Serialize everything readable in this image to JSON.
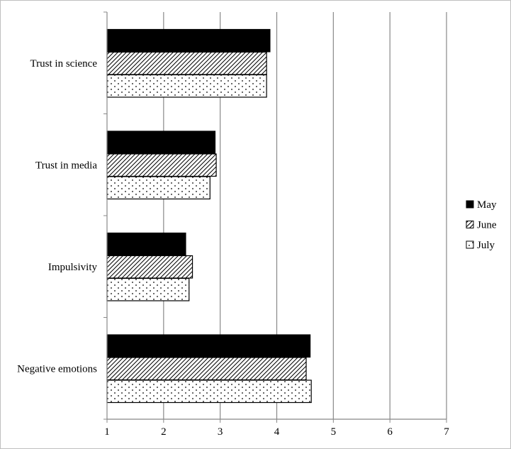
{
  "chart_data": {
    "type": "bar",
    "orientation": "horizontal",
    "title": "",
    "xlabel": "",
    "ylabel": "",
    "xlim": [
      1,
      7
    ],
    "x_ticks": [
      "1",
      "2",
      "3",
      "4",
      "5",
      "6",
      "7"
    ],
    "grid": "vertical",
    "legend_position": "right",
    "categories": [
      "Trust in science",
      "Trust in media",
      "Impulsivity",
      "Negative emotions"
    ],
    "series": [
      {
        "name": "May",
        "pattern": "solid",
        "values": [
          3.88,
          2.91,
          2.39,
          4.59
        ]
      },
      {
        "name": "June",
        "pattern": "diagonal",
        "values": [
          3.82,
          2.93,
          2.51,
          4.52
        ]
      },
      {
        "name": "July",
        "pattern": "dotted",
        "values": [
          3.82,
          2.82,
          2.45,
          4.61
        ]
      }
    ],
    "colors": {
      "bar_stroke": "#000000",
      "solid_fill": "#000000",
      "grid": "#888888",
      "border": "#bfbfbf"
    }
  }
}
